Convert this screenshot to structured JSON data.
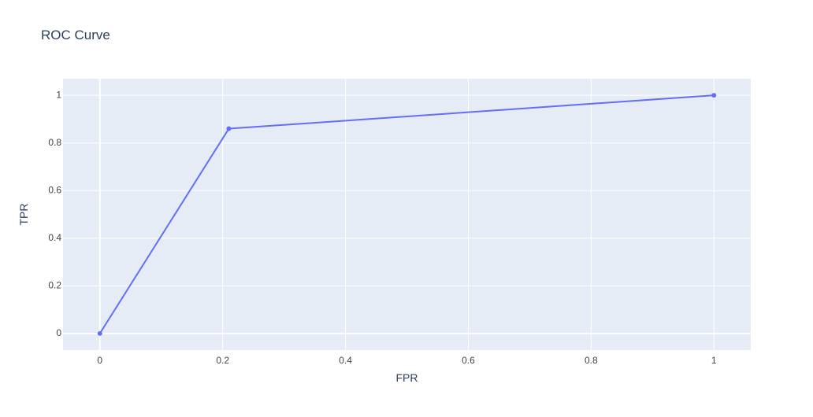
{
  "chart_data": {
    "type": "line",
    "title": "ROC Curve",
    "xlabel": "FPR",
    "ylabel": "TPR",
    "x": [
      0,
      0.21,
      1
    ],
    "series": [
      {
        "values": [
          0,
          0.86,
          1
        ],
        "color": "#636efa",
        "mode": "lines+markers"
      }
    ],
    "xlim": [
      -0.06,
      1.06
    ],
    "ylim": [
      -0.07,
      1.07
    ],
    "xticks": [
      0,
      0.2,
      0.4,
      0.6,
      0.8,
      1
    ],
    "yticks": [
      0,
      0.2,
      0.4,
      0.6,
      0.8,
      1
    ],
    "xtick_labels": [
      "0",
      "0.2",
      "0.4",
      "0.6",
      "0.8",
      "1"
    ],
    "ytick_labels": [
      "0",
      "0.2",
      "0.4",
      "0.6",
      "0.8",
      "1"
    ],
    "grid": true,
    "plot_bgcolor": "#e5ecf6",
    "grid_color": "#ffffff",
    "text_color": "#2a3f5f",
    "tick_color": "#444444"
  }
}
